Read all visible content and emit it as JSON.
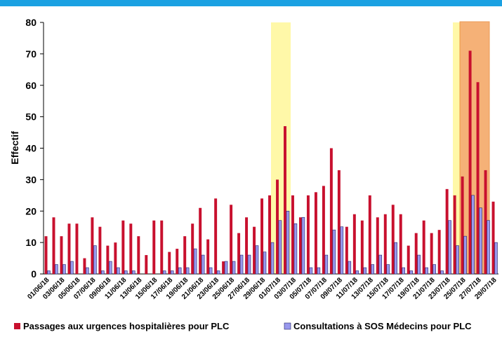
{
  "chart_data": {
    "type": "bar",
    "y_label": "Effectif",
    "categories": [
      "01/06/18",
      null,
      "03/06/18",
      null,
      "05/06/18",
      null,
      "07/06/18",
      null,
      "09/06/18",
      null,
      "11/06/18",
      null,
      "13/06/18",
      null,
      "15/06/18",
      null,
      "17/06/18",
      null,
      "19/06/18",
      null,
      "21/06/18",
      null,
      "23/06/18",
      null,
      "25/06/18",
      null,
      "27/06/18",
      null,
      "29/06/18",
      null,
      "01/07/18",
      null,
      "03/07/18",
      null,
      "05/07/18",
      null,
      "07/07/18",
      null,
      "09/07/18",
      null,
      "11/07/18",
      null,
      "13/07/18",
      null,
      "15/07/18",
      null,
      "17/07/18",
      null,
      "19/07/18",
      null,
      "21/07/18",
      null,
      "23/07/18",
      null,
      "25/07/18",
      null,
      "27/07/18",
      null,
      "29/07/18"
    ],
    "series": [
      {
        "name": "Passages aux urgences hospitalières pour PLC",
        "color": "#c8102e",
        "values": [
          12,
          18,
          12,
          16,
          16,
          5,
          18,
          15,
          9,
          10,
          17,
          16,
          12,
          6,
          17,
          17,
          7,
          8,
          12,
          16,
          21,
          11,
          24,
          4,
          22,
          13,
          18,
          15,
          24,
          25,
          30,
          47,
          25,
          18,
          25,
          26,
          28,
          40,
          33,
          15,
          19,
          17,
          25,
          18,
          19,
          22,
          19,
          9,
          13,
          17,
          13,
          14,
          27,
          25,
          31,
          71,
          61,
          33,
          23
        ]
      },
      {
        "name": "Consultations à SOS Médecins pour PLC",
        "color": "#9999ee",
        "values": [
          1,
          3,
          3,
          4,
          0,
          2,
          9,
          1,
          4,
          2,
          1,
          1,
          0,
          0,
          0,
          1,
          1,
          2,
          2,
          8,
          6,
          2,
          1,
          4,
          4,
          6,
          6,
          9,
          7,
          10,
          17,
          20,
          16,
          18,
          2,
          2,
          6,
          14,
          15,
          4,
          1,
          2,
          3,
          6,
          3,
          10,
          2,
          1,
          6,
          2,
          3,
          1,
          17,
          9,
          12,
          25,
          21,
          17,
          10
        ]
      }
    ],
    "ylim": [
      0,
      80
    ],
    "yticks": [
      0,
      10,
      20,
      30,
      40,
      50,
      60,
      70,
      80
    ],
    "grid": false,
    "legend": "bottom"
  }
}
